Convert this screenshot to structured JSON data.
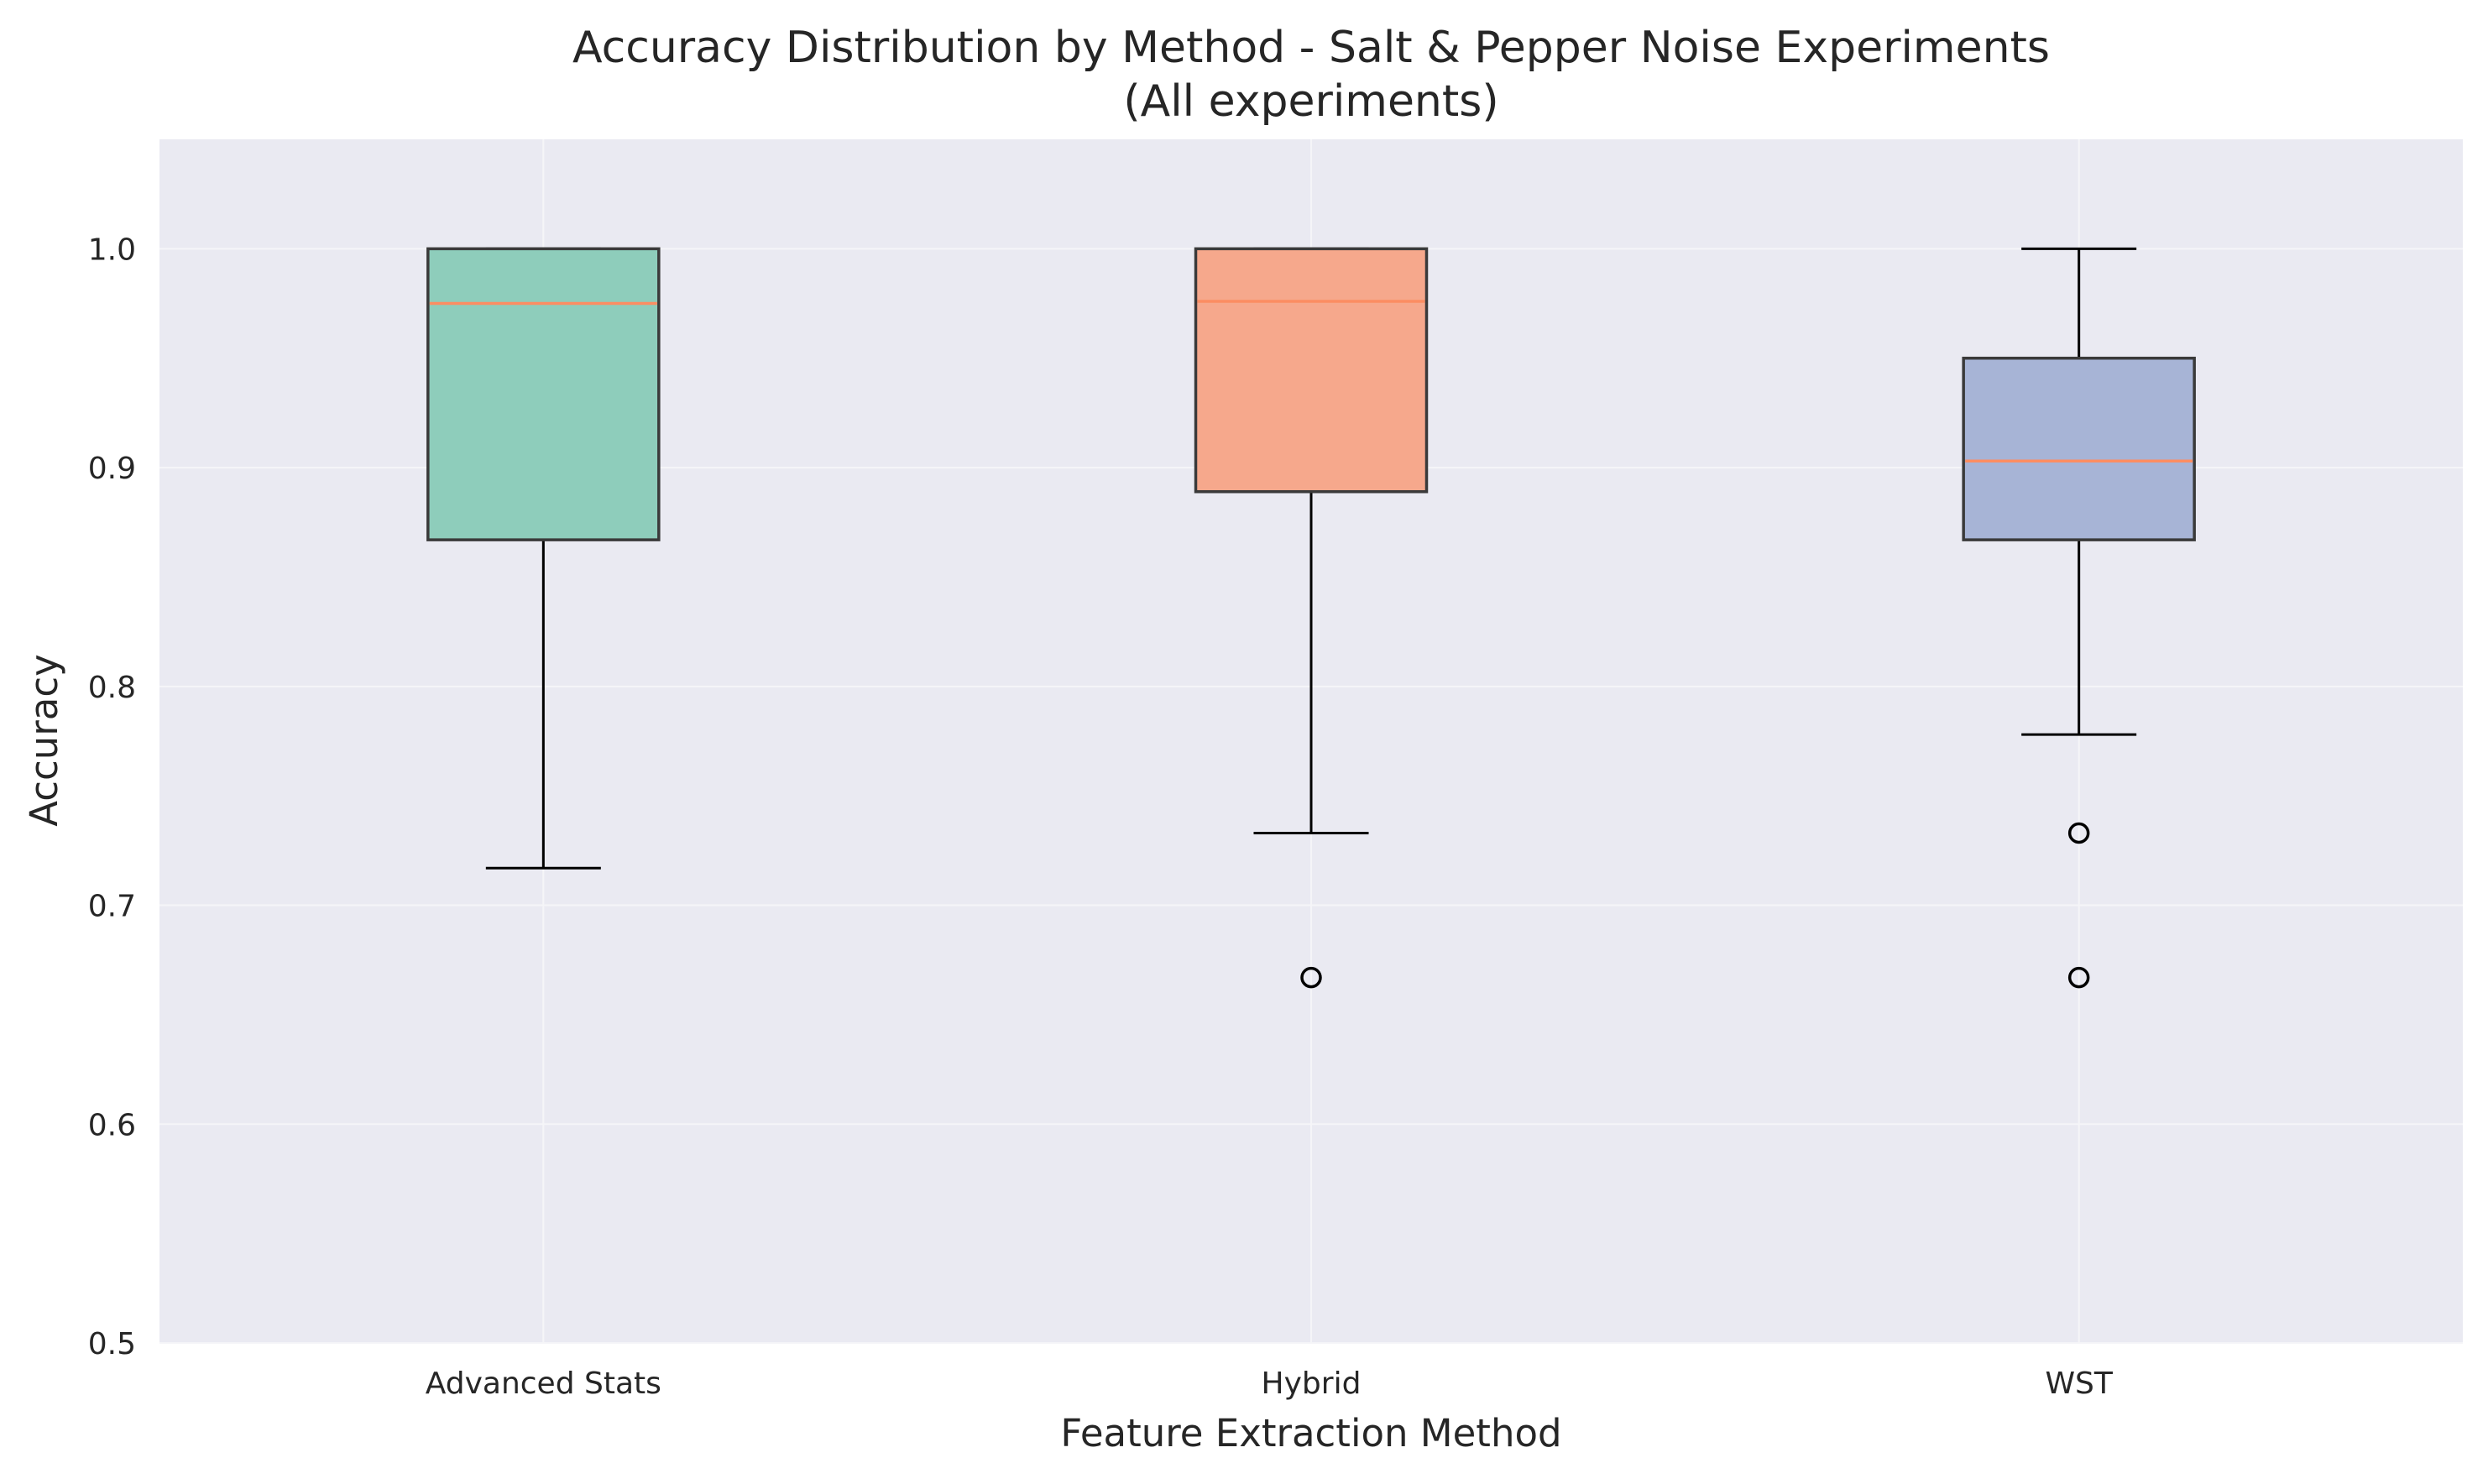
{
  "chart_data": {
    "type": "box",
    "title": "Accuracy Distribution by Method - Salt & Pepper Noise Experiments",
    "subtitle": "(All experiments)",
    "xlabel": "Feature Extraction Method",
    "ylabel": "Accuracy",
    "ylim": [
      0.5,
      1.05
    ],
    "yticks": [
      0.5,
      0.6,
      0.7,
      0.8,
      0.9,
      1.0
    ],
    "ytick_labels": [
      "0.5",
      "0.6",
      "0.7",
      "0.8",
      "0.9",
      "1.0"
    ],
    "grid": true,
    "categories": [
      "Advanced Stats",
      "Hybrid",
      "WST"
    ],
    "boxes": [
      {
        "label": "Advanced Stats",
        "color": "#8ecdbb",
        "whisker_low": 0.717,
        "q1": 0.867,
        "median": 0.975,
        "q3": 1.0,
        "whisker_high": 1.0,
        "outliers": []
      },
      {
        "label": "Hybrid",
        "color": "#f6a88c",
        "whisker_low": 0.733,
        "q1": 0.889,
        "median": 0.976,
        "q3": 1.0,
        "whisker_high": 1.0,
        "outliers": [
          0.667
        ]
      },
      {
        "label": "WST",
        "color": "#a7b4d6",
        "whisker_low": 0.778,
        "q1": 0.867,
        "median": 0.903,
        "q3": 0.95,
        "whisker_high": 1.0,
        "outliers": [
          0.733,
          0.667
        ]
      }
    ],
    "colors": {
      "plot_background": "#eaeaf2",
      "grid": "#f5f5f8",
      "median_line": "#fc8d62",
      "box_edge": "#3a3a3a",
      "whisker": "#000000"
    }
  }
}
